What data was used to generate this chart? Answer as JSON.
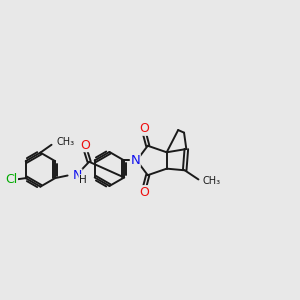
{
  "bg_color": "#e8e8e8",
  "bond_color": "#1a1a1a",
  "bond_width": 1.4,
  "dbo": 0.055,
  "fs": 8.5,
  "atom_colors": {
    "C": "#1a1a1a",
    "N": "#1010ee",
    "O": "#ee1010",
    "Cl": "#00aa00",
    "H": "#1a1a1a"
  }
}
